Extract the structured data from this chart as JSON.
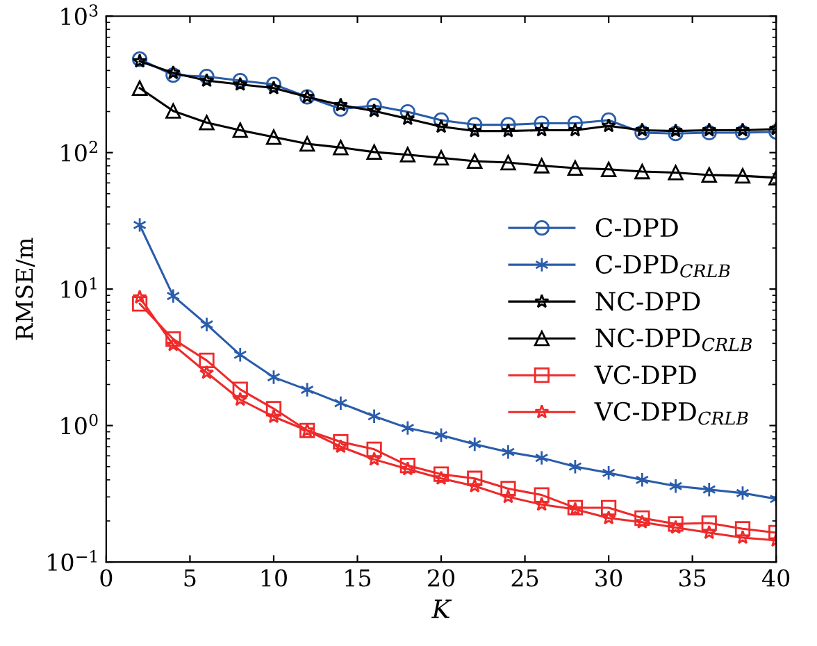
{
  "chart_data": {
    "type": "line",
    "xlabel": "K",
    "ylabel": "RMSE/m",
    "log": "y",
    "grid": false,
    "legend": "right",
    "xlim": [
      0,
      40
    ],
    "xticks": [
      0,
      5,
      10,
      15,
      20,
      25,
      30,
      35,
      40
    ],
    "ylim": [
      0.1,
      1000
    ],
    "yticks": [
      {
        "value": 0.1,
        "label": "10$^{−1}$"
      },
      {
        "value": 1,
        "label": "10$^{0}$"
      },
      {
        "value": 10,
        "label": "10$^{1}$"
      },
      {
        "value": 100,
        "label": "10$^{2}$"
      },
      {
        "value": 1000,
        "label": "10$^{3}$"
      }
    ],
    "x": [
      2,
      4,
      6,
      8,
      10,
      12,
      14,
      16,
      18,
      20,
      22,
      24,
      26,
      28,
      30,
      32,
      34,
      36,
      38,
      40
    ],
    "series": [
      {
        "name": "C-DPD",
        "color": "#2a5caa",
        "marker": "circle",
        "values": [
          484,
          370,
          361,
          337,
          316,
          256,
          209,
          221,
          199,
          173,
          160,
          160,
          164,
          164,
          173,
          140,
          138,
          140,
          140,
          142
        ]
      },
      {
        "name": "C-DPD$_{CRLB}$",
        "color": "#2a5caa",
        "marker": "cross",
        "values": [
          29.5,
          8.9,
          5.5,
          3.3,
          2.26,
          1.83,
          1.46,
          1.17,
          0.96,
          0.85,
          0.73,
          0.64,
          0.58,
          0.5,
          0.45,
          0.4,
          0.36,
          0.34,
          0.32,
          0.29
        ]
      },
      {
        "name": "NC-DPD",
        "color": "#000000",
        "marker": "star",
        "values": [
          467,
          384,
          337,
          316,
          297,
          256,
          223,
          202,
          177,
          155,
          144,
          144,
          146,
          146,
          157,
          146,
          144,
          146,
          146,
          149
        ]
      },
      {
        "name": "NC-DPD$_{CRLB}$",
        "color": "#000000",
        "marker": "triangle",
        "values": [
          297,
          202,
          166,
          146,
          130,
          116,
          109,
          101,
          96.6,
          91.6,
          86.6,
          84.5,
          80.2,
          77.1,
          75.4,
          72.6,
          71.4,
          68.6,
          67.6,
          65.5
        ]
      },
      {
        "name": "VC-DPD",
        "color": "#ee2a2a",
        "marker": "square",
        "values": [
          7.8,
          4.3,
          3.0,
          1.84,
          1.33,
          0.92,
          0.76,
          0.67,
          0.51,
          0.44,
          0.41,
          0.345,
          0.31,
          0.25,
          0.25,
          0.21,
          0.19,
          0.193,
          0.175,
          0.164
        ]
      },
      {
        "name": "VC-DPD$_{CRLB}$",
        "color": "#ee2a2a",
        "marker": "star",
        "values": [
          8.7,
          3.9,
          2.44,
          1.55,
          1.16,
          0.92,
          0.7,
          0.565,
          0.48,
          0.41,
          0.36,
          0.3,
          0.264,
          0.243,
          0.21,
          0.196,
          0.179,
          0.164,
          0.151,
          0.144
        ]
      }
    ]
  }
}
